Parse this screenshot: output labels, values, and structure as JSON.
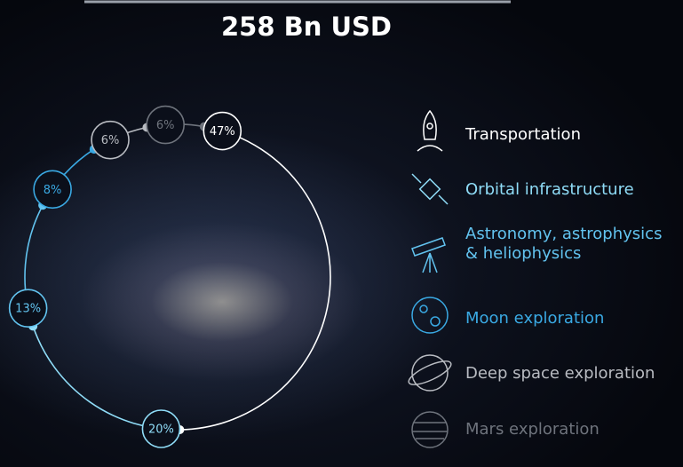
{
  "chart_data": {
    "type": "ring",
    "title": "258 Bn USD",
    "categories": [
      "Transportation",
      "Orbital infrastructure",
      "Astronomy, astrophysics & heliophysics",
      "Moon exploration",
      "Deep space exploration",
      "Mars exploration"
    ],
    "values": [
      47,
      20,
      13,
      8,
      6,
      6
    ],
    "value_labels": [
      "47%",
      "20%",
      "13%",
      "8%",
      "6%",
      "6%"
    ],
    "colors": [
      "#ffffff",
      "#8fdcf7",
      "#62c3ef",
      "#3aa9e3",
      "#b9bcc2",
      "#6e737c"
    ]
  }
}
